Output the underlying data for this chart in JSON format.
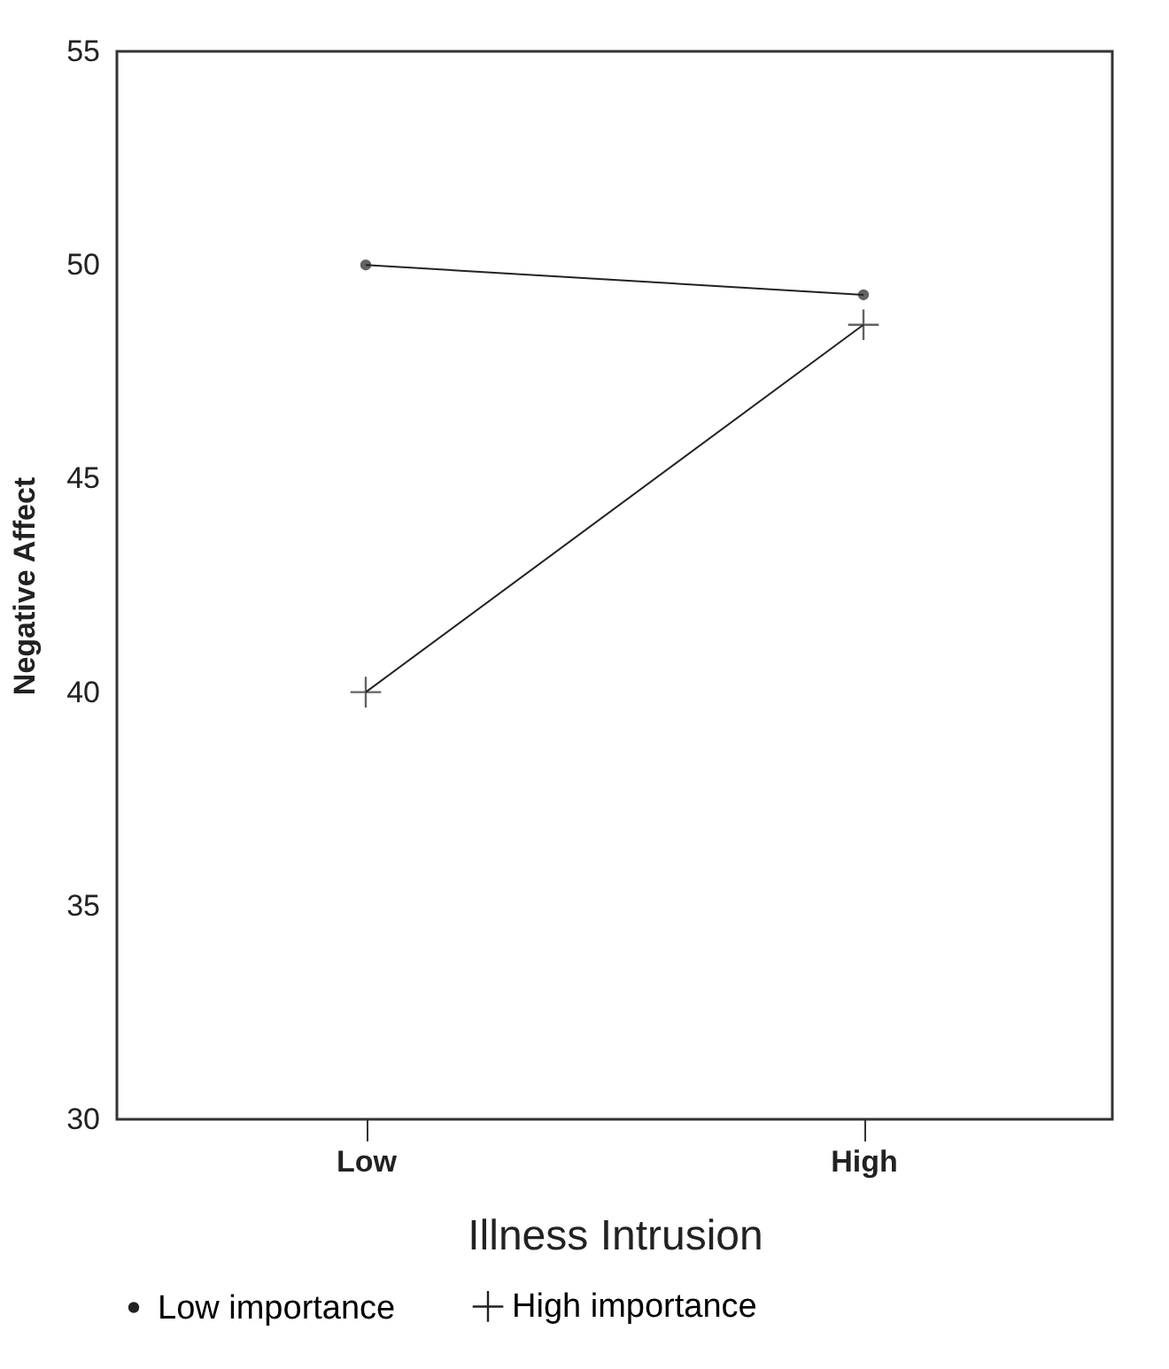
{
  "chart_data": {
    "type": "line",
    "xlabel": "Illness Intrusion",
    "ylabel": "Negative Affect",
    "categories": [
      "Low",
      "High"
    ],
    "series": [
      {
        "name": "Low importance",
        "color": "#222222",
        "marker": "circle",
        "values": [
          50.0,
          49.3
        ]
      },
      {
        "name": "High importance",
        "color": "#222222",
        "marker": "cross",
        "values": [
          40.0,
          48.6
        ]
      }
    ],
    "ylim": [
      30,
      55
    ],
    "yticks": [
      30,
      35,
      40,
      45,
      50,
      55
    ],
    "grid": false,
    "legend": "bottom",
    "line_style": "solid"
  }
}
